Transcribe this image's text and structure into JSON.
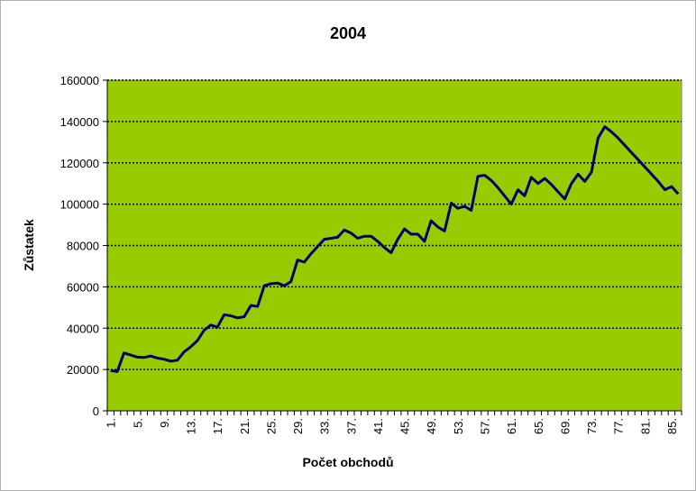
{
  "chart_data": {
    "type": "line",
    "title": "2004",
    "xlabel": "Počet obchodů",
    "ylabel": "Zůstatek",
    "ylim": [
      0,
      160000
    ],
    "y_ticks": [
      "0",
      "20000",
      "40000",
      "60000",
      "80000",
      "100000",
      "120000",
      "140000",
      "160000"
    ],
    "x_tick_labels": [
      "1.",
      "5.",
      "9.",
      "13.",
      "17.",
      "21.",
      "25.",
      "29.",
      "33.",
      "37.",
      "41.",
      "45.",
      "49.",
      "53.",
      "57.",
      "61.",
      "65.",
      "69.",
      "73.",
      "77.",
      "81.",
      "85."
    ],
    "x_tick_positions": [
      1,
      5,
      9,
      13,
      17,
      21,
      25,
      29,
      33,
      37,
      41,
      45,
      49,
      53,
      57,
      61,
      65,
      69,
      73,
      77,
      81,
      85
    ],
    "plot_background": "#99cc00",
    "line_color": "#000066",
    "grid": "horizontal dotted",
    "legend": "none",
    "series": [
      {
        "x": [
          1,
          2,
          3,
          4,
          5,
          6,
          7,
          8,
          9,
          10,
          11,
          12,
          13,
          14,
          15,
          16,
          17,
          18,
          19,
          20,
          21,
          22,
          23,
          24,
          25,
          26,
          27,
          28,
          29,
          30,
          31,
          32,
          33,
          34,
          35,
          36,
          37,
          38,
          39,
          40,
          41,
          42,
          43,
          44,
          45,
          46,
          47,
          48,
          49,
          50,
          51,
          52,
          53,
          54,
          55,
          56,
          57,
          58,
          59,
          60,
          61,
          62,
          63,
          64,
          65,
          66,
          67,
          68,
          69,
          70,
          71,
          72,
          73,
          74,
          75,
          76,
          77,
          78,
          79,
          80,
          81,
          82,
          83,
          84,
          85,
          86
        ],
        "values": [
          19500,
          19000,
          28000,
          27000,
          26000,
          25800,
          26500,
          25500,
          25000,
          24000,
          24500,
          28500,
          31000,
          34000,
          39000,
          41500,
          40500,
          46500,
          46000,
          45000,
          45500,
          51000,
          50500,
          60500,
          61500,
          61800,
          60500,
          62500,
          73000,
          72000,
          76000,
          79500,
          83000,
          83500,
          84000,
          87500,
          86000,
          83500,
          84500,
          84500,
          82000,
          79000,
          76500,
          83000,
          88000,
          85500,
          85500,
          82000,
          92000,
          89000,
          87000,
          100500,
          98000,
          99000,
          97000,
          113500,
          114000,
          111500,
          108000,
          104000,
          100000,
          107000,
          104000,
          113000,
          110000,
          112500,
          109500,
          106000,
          102500,
          110000,
          114500,
          111000,
          115500,
          132000,
          137500,
          135000,
          132000,
          128500,
          125000,
          121500,
          118000,
          114500,
          111000,
          107000,
          108500,
          105000
        ]
      }
    ]
  }
}
